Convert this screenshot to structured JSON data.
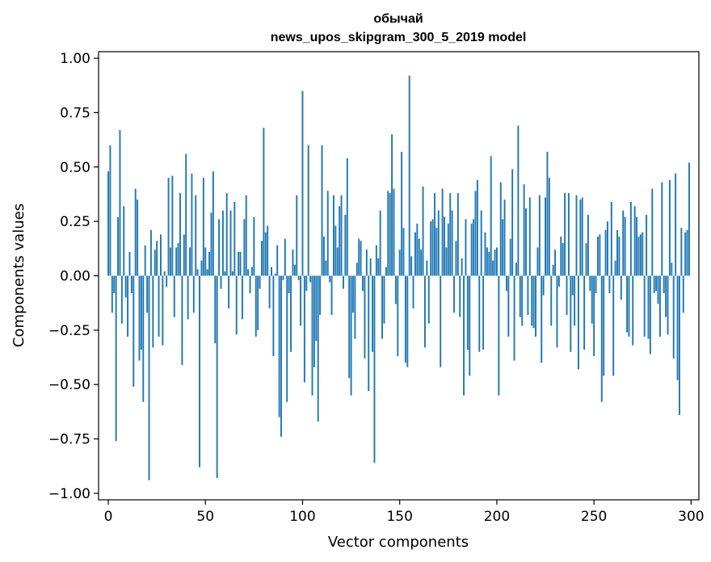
{
  "chart_data": {
    "type": "bar",
    "title": "обычай",
    "subtitle": "news_upos_skipgram_300_5_2019 model",
    "xlabel": "Vector components",
    "ylabel": "Components values",
    "xlim": [
      -5,
      304
    ],
    "ylim": [
      -1.03,
      1.03
    ],
    "xticks": [
      0,
      50,
      100,
      150,
      200,
      250,
      300
    ],
    "yticks": [
      1.0,
      0.75,
      0.5,
      0.25,
      0.0,
      -0.25,
      -0.5,
      -0.75,
      -1.0
    ],
    "ytick_labels": [
      "1.00",
      "0.75",
      "0.50",
      "0.25",
      "0.00",
      "−0.25",
      "−0.50",
      "−0.75",
      "−1.00"
    ],
    "bar_color": "#1f77b4",
    "bar_width": 0.8,
    "values": [
      0.48,
      0.6,
      -0.17,
      -0.08,
      -0.76,
      0.27,
      0.67,
      -0.22,
      0.32,
      -0.1,
      -0.28,
      0.11,
      -0.08,
      -0.51,
      0.4,
      0.35,
      -0.39,
      -0.34,
      -0.58,
      0.14,
      -0.17,
      -0.94,
      0.21,
      -0.33,
      0.12,
      0.16,
      -0.28,
      0.19,
      -0.32,
      0.02,
      -0.05,
      0.45,
      0.13,
      0.46,
      -0.19,
      0.13,
      0.15,
      0.38,
      -0.41,
      0.19,
      0.56,
      -0.2,
      0.13,
      0.47,
      -0.17,
      0.37,
      0.03,
      -0.88,
      0.07,
      0.45,
      0.13,
      0.03,
      0.11,
      0.29,
      0.48,
      -0.31,
      -0.93,
      0.26,
      -0.06,
      0.3,
      0.02,
      0.38,
      -0.15,
      0.3,
      0.02,
      0.34,
      -0.27,
      0.11,
      0.11,
      -0.2,
      0.26,
      0.37,
      0.03,
      -0.08,
      0.04,
      0.27,
      -0.28,
      -0.25,
      -0.06,
      0.16,
      0.68,
      0.2,
      0.23,
      -0.15,
      0.04,
      -0.37,
      0.01,
      0.14,
      -0.65,
      -0.74,
      -0.02,
      0.17,
      -0.58,
      -0.08,
      -0.35,
      0.12,
      0.05,
      0.37,
      -0.02,
      -0.23,
      0.85,
      -0.49,
      -0.07,
      0.6,
      -0.03,
      -0.55,
      -0.42,
      -0.3,
      -0.67,
      -0.18,
      0.6,
      0.18,
      0.07,
      0.39,
      -0.03,
      -0.18,
      0.37,
      0.23,
      0.13,
      0.32,
      0.37,
      -0.06,
      0.28,
      0.54,
      -0.47,
      -0.55,
      -0.17,
      -0.29,
      0.06,
      0.17,
      0.16,
      -0.07,
      -0.38,
      0.12,
      -0.53,
      0.08,
      -0.35,
      -0.86,
      0.14,
      0.08,
      0.3,
      -0.29,
      -0.22,
      0.04,
      0.39,
      0.38,
      0.65,
      0.4,
      -0.13,
      -0.37,
      0.12,
      0.57,
      0.22,
      -0.4,
      -0.42,
      0.92,
      0.09,
      -0.15,
      0.2,
      0.24,
      0.17,
      0.12,
      0.41,
      -0.33,
      0.07,
      -0.22,
      0.25,
      0.26,
      0.38,
      0.22,
      0.3,
      -0.42,
      0.4,
      0.27,
      0.13,
      0.24,
      0.38,
      0.3,
      -0.17,
      0.16,
      0.38,
      -0.19,
      0.08,
      -0.55,
      0.26,
      -0.34,
      -0.46,
      0.24,
      0.26,
      0.39,
      0.44,
      -0.35,
      0.3,
      -0.34,
      0.2,
      0.13,
      0.11,
      0.55,
      0.07,
      0.12,
      0.13,
      -0.55,
      0.43,
      0.26,
      0.35,
      -0.07,
      -0.28,
      0.17,
      0.49,
      -0.39,
      0.06,
      0.69,
      -0.19,
      -0.23,
      0.42,
      0.31,
      -0.18,
      0.36,
      -0.23,
      -0.24,
      -0.28,
      0.13,
      0.37,
      -0.4,
      -0.09,
      0.36,
      0.57,
      0.45,
      -0.23,
      0.05,
      0.12,
      -0.33,
      -0.05,
      0.18,
      0.15,
      0.38,
      -0.18,
      0.38,
      -0.35,
      -0.09,
      -0.23,
      0.37,
      -0.43,
      0.35,
      0.36,
      -0.34,
      0.15,
      0.28,
      -0.07,
      -0.22,
      -0.37,
      -0.08,
      0.18,
      0.19,
      -0.58,
      -0.46,
      0.21,
      0.25,
      -0.08,
      0.34,
      -0.46,
      0.07,
      0.21,
      0.18,
      -0.11,
      0.3,
      0.27,
      -0.26,
      -0.28,
      0.34,
      -0.32,
      0.32,
      0.27,
      0.18,
      0.19,
      0.2,
      -0.28,
      0.28,
      -0.29,
      -0.36,
      0.4,
      -0.08,
      -0.07,
      -0.13,
      -0.28,
      0.43,
      -0.08,
      -0.19,
      -0.27,
      0.44,
      0.06,
      -0.38,
      0.47,
      -0.48,
      -0.64,
      0.22,
      -0.17,
      0.2,
      0.21,
      0.52
    ]
  }
}
